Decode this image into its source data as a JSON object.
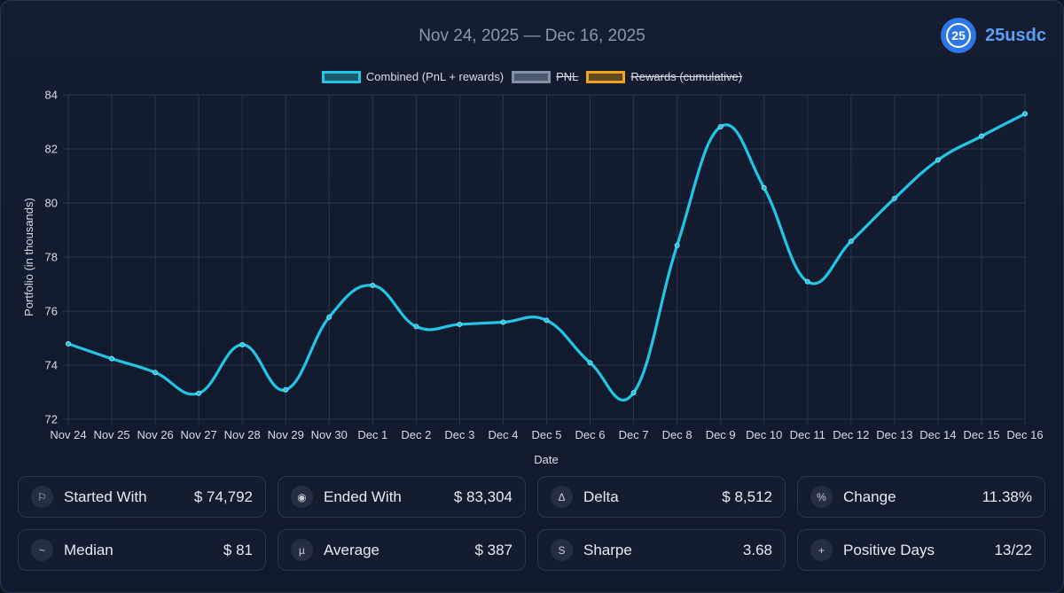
{
  "header": {
    "date_range": "Nov 24, 2025 — Dec 16, 2025",
    "brand_logo_text": "25",
    "brand_name": "25usdc"
  },
  "legend": [
    {
      "label": "Combined (PnL + rewards)",
      "border": "#22c5e4",
      "fill": "#1e5a6e",
      "hidden": false
    },
    {
      "label": "PNL",
      "border": "#8391a8",
      "fill": "#4c5870",
      "hidden": true
    },
    {
      "label": "Rewards (cumulative)",
      "border": "#f0a11e",
      "fill": "#5f4a22",
      "hidden": true
    }
  ],
  "chart_data": {
    "type": "line",
    "xlabel": "Date",
    "ylabel": "Portfolio (in thousands)",
    "ylim": [
      72,
      84
    ],
    "yticks": [
      72,
      74,
      76,
      78,
      80,
      82,
      84
    ],
    "grid": true,
    "legend_position": "top-center",
    "categories": [
      "Nov 24",
      "Nov 25",
      "Nov 26",
      "Nov 27",
      "Nov 28",
      "Nov 29",
      "Nov 30",
      "Dec 1",
      "Dec 2",
      "Dec 3",
      "Dec 4",
      "Dec 5",
      "Dec 6",
      "Dec 7",
      "Dec 8",
      "Dec 9",
      "Dec 10",
      "Dec 11",
      "Dec 12",
      "Dec 13",
      "Dec 14",
      "Dec 15",
      "Dec 16"
    ],
    "series": [
      {
        "name": "Combined (PnL + rewards)",
        "color": "#22c5e4",
        "values": [
          74.79,
          74.24,
          73.73,
          72.96,
          74.76,
          73.09,
          75.78,
          76.95,
          75.43,
          75.51,
          75.59,
          75.66,
          74.09,
          72.98,
          78.43,
          82.82,
          80.56,
          77.09,
          78.58,
          80.17,
          81.59,
          82.47,
          83.3
        ]
      }
    ]
  },
  "stats": [
    {
      "icon": "⚐",
      "icon_name": "flag-icon",
      "label": "Started With",
      "value": "$ 74,792"
    },
    {
      "icon": "◉",
      "icon_name": "target-icon",
      "label": "Ended With",
      "value": "$ 83,304"
    },
    {
      "icon": "Δ",
      "icon_name": "delta-icon",
      "label": "Delta",
      "value": "$ 8,512"
    },
    {
      "icon": "%",
      "icon_name": "percent-icon",
      "label": "Change",
      "value": "11.38%"
    },
    {
      "icon": "~",
      "icon_name": "tilde-icon",
      "label": "Median",
      "value": "$ 81"
    },
    {
      "icon": "µ",
      "icon_name": "mu-icon",
      "label": "Average",
      "value": "$ 387"
    },
    {
      "icon": "S",
      "icon_name": "sharpe-icon",
      "label": "Sharpe",
      "value": "3.68"
    },
    {
      "icon": "+",
      "icon_name": "plus-icon",
      "label": "Positive Days",
      "value": "13/22"
    }
  ]
}
